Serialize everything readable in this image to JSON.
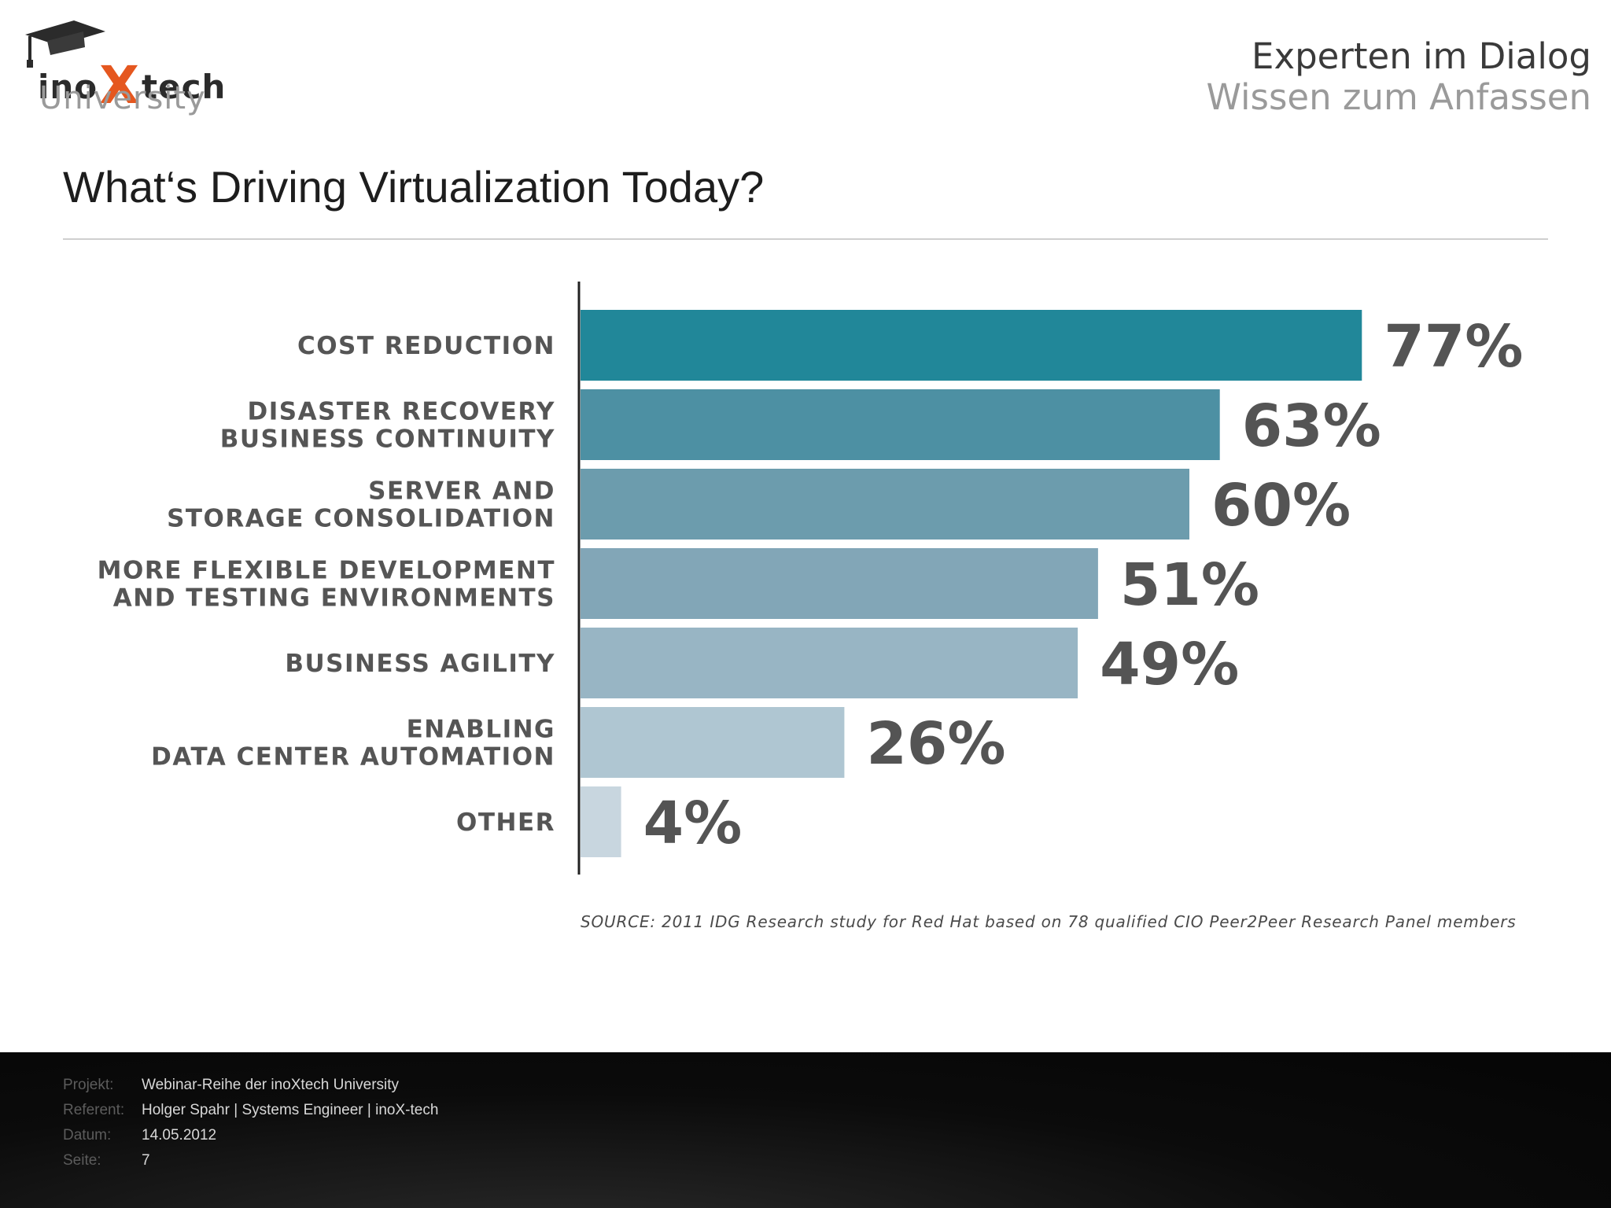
{
  "header": {
    "logo_main_left": "ino",
    "logo_main_x": "X",
    "logo_main_right": "tech",
    "logo_sub": "University",
    "tagline_line1": "Experten im Dialog",
    "tagline_line2": "Wissen zum Anfassen"
  },
  "slide": {
    "title": "What‘s Driving Virtualization Today?",
    "source": "SOURCE: 2011 IDG Research study for Red Hat based on 78 qualified CIO Peer2Peer Research Panel members"
  },
  "chart_data": {
    "type": "bar",
    "orientation": "horizontal",
    "categories": [
      [
        "COST REDUCTION"
      ],
      [
        "DISASTER RECOVERY",
        "BUSINESS CONTINUITY"
      ],
      [
        "SERVER AND",
        "STORAGE CONSOLIDATION"
      ],
      [
        "MORE FLEXIBLE DEVELOPMENT",
        "AND TESTING ENVIRONMENTS"
      ],
      [
        "BUSINESS AGILITY"
      ],
      [
        "ENABLING",
        "DATA CENTER AUTOMATION"
      ],
      [
        "OTHER"
      ]
    ],
    "values": [
      77,
      63,
      60,
      51,
      49,
      26,
      4
    ],
    "value_labels": [
      "77%",
      "63%",
      "60%",
      "51%",
      "49%",
      "26%",
      "4%"
    ],
    "colors": [
      "#218799",
      "#4d90a3",
      "#6c9cad",
      "#82a6b7",
      "#98b5c4",
      "#afc6d2",
      "#c8d6df"
    ],
    "xlim": [
      0,
      100
    ],
    "grid": false,
    "legend": "none"
  },
  "footer": {
    "rows": [
      {
        "key": "Projekt:",
        "value": "Webinar-Reihe der inoXtech University"
      },
      {
        "key": "Referent:",
        "value": "Holger Spahr | Systems Engineer | inoX-tech"
      },
      {
        "key": "Datum:",
        "value": "14.05.2012"
      },
      {
        "key": "Seite:",
        "value": "7"
      }
    ]
  }
}
